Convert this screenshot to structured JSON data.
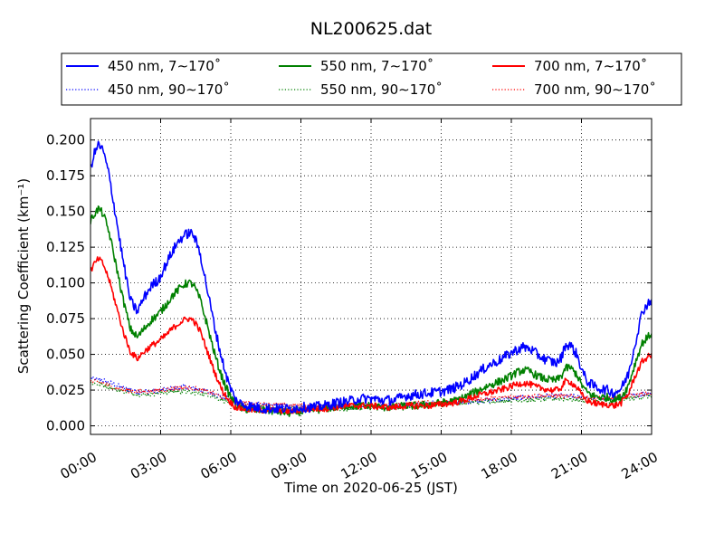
{
  "chart_data": {
    "type": "line",
    "title": "NL200625.dat",
    "xlabel": "Time on 2020-06-25 (JST)",
    "ylabel": "Scattering Coefficient (km⁻¹)",
    "x_unit": "hours",
    "xlim": [
      0,
      24
    ],
    "ylim": [
      -0.006,
      0.215
    ],
    "x_ticks": [
      0,
      3,
      6,
      9,
      12,
      15,
      18,
      21,
      24
    ],
    "x_tick_labels": [
      "00:00",
      "03:00",
      "06:00",
      "09:00",
      "12:00",
      "15:00",
      "18:00",
      "21:00",
      "24:00"
    ],
    "y_ticks": [
      0.0,
      0.025,
      0.05,
      0.075,
      0.1,
      0.125,
      0.15,
      0.175,
      0.2
    ],
    "y_tick_labels": [
      "0.000",
      "0.025",
      "0.050",
      "0.075",
      "0.100",
      "0.125",
      "0.150",
      "0.175",
      "0.200"
    ],
    "grid": true,
    "legend": {
      "placement": "top",
      "columns": 3
    },
    "series": [
      {
        "name": "450 nm, 7∼170˚",
        "color": "#0000ff",
        "style": "solid",
        "noise": 0.0035,
        "x": [
          0,
          0.15,
          0.35,
          0.55,
          0.8,
          1.1,
          1.4,
          1.7,
          2.0,
          2.3,
          2.6,
          2.9,
          3.2,
          3.5,
          3.8,
          4.0,
          4.2,
          4.4,
          4.7,
          5.0,
          5.3,
          5.6,
          5.9,
          6.2,
          6.5,
          7.0,
          7.5,
          8.0,
          8.5,
          9.0,
          9.5,
          10.0,
          10.5,
          11.0,
          11.5,
          12.0,
          12.5,
          13.0,
          13.5,
          14.0,
          14.5,
          15.0,
          15.5,
          16.0,
          16.5,
          17.0,
          17.5,
          17.9,
          18.2,
          18.5,
          18.8,
          19.1,
          19.4,
          19.7,
          19.95,
          20.15,
          20.3,
          20.5,
          20.8,
          21.0,
          21.2,
          21.5,
          21.8,
          22.1,
          22.4,
          22.7,
          23.0,
          23.3,
          23.6,
          23.9,
          24.0
        ],
        "y": [
          0.18,
          0.19,
          0.197,
          0.192,
          0.175,
          0.145,
          0.115,
          0.088,
          0.08,
          0.09,
          0.098,
          0.102,
          0.112,
          0.122,
          0.13,
          0.133,
          0.135,
          0.134,
          0.12,
          0.095,
          0.07,
          0.048,
          0.03,
          0.018,
          0.015,
          0.013,
          0.012,
          0.012,
          0.012,
          0.013,
          0.013,
          0.014,
          0.016,
          0.017,
          0.019,
          0.019,
          0.018,
          0.018,
          0.021,
          0.022,
          0.023,
          0.024,
          0.026,
          0.03,
          0.036,
          0.042,
          0.046,
          0.05,
          0.053,
          0.055,
          0.054,
          0.05,
          0.047,
          0.045,
          0.044,
          0.048,
          0.056,
          0.057,
          0.05,
          0.04,
          0.032,
          0.028,
          0.026,
          0.025,
          0.023,
          0.026,
          0.036,
          0.058,
          0.08,
          0.087,
          0.088
        ]
      },
      {
        "name": "550 nm, 7∼170˚",
        "color": "#008000",
        "style": "solid",
        "noise": 0.0028,
        "x": [
          0,
          0.15,
          0.35,
          0.55,
          0.8,
          1.1,
          1.4,
          1.7,
          2.0,
          2.3,
          2.6,
          2.9,
          3.2,
          3.5,
          3.8,
          4.0,
          4.2,
          4.4,
          4.7,
          5.0,
          5.3,
          5.6,
          5.9,
          6.2,
          6.5,
          7.0,
          7.5,
          8.0,
          8.5,
          9.0,
          9.5,
          10.0,
          10.5,
          11.0,
          11.5,
          12.0,
          12.5,
          13.0,
          13.5,
          14.0,
          14.5,
          15.0,
          15.5,
          16.0,
          16.5,
          17.0,
          17.5,
          17.9,
          18.2,
          18.5,
          18.8,
          19.1,
          19.4,
          19.7,
          19.95,
          20.15,
          20.3,
          20.5,
          20.8,
          21.0,
          21.2,
          21.5,
          21.8,
          22.1,
          22.4,
          22.7,
          23.0,
          23.3,
          23.6,
          23.9,
          24.0
        ],
        "y": [
          0.143,
          0.148,
          0.152,
          0.148,
          0.135,
          0.112,
          0.088,
          0.068,
          0.062,
          0.068,
          0.074,
          0.078,
          0.084,
          0.091,
          0.096,
          0.099,
          0.1,
          0.099,
          0.088,
          0.07,
          0.051,
          0.035,
          0.023,
          0.015,
          0.012,
          0.011,
          0.011,
          0.01,
          0.009,
          0.01,
          0.011,
          0.012,
          0.013,
          0.014,
          0.014,
          0.014,
          0.013,
          0.013,
          0.014,
          0.014,
          0.015,
          0.016,
          0.017,
          0.02,
          0.024,
          0.028,
          0.031,
          0.034,
          0.037,
          0.039,
          0.038,
          0.035,
          0.033,
          0.032,
          0.032,
          0.035,
          0.04,
          0.041,
          0.036,
          0.029,
          0.024,
          0.021,
          0.02,
          0.02,
          0.018,
          0.02,
          0.028,
          0.044,
          0.058,
          0.063,
          0.065
        ]
      },
      {
        "name": "700 nm, 7∼170˚",
        "color": "#ff0000",
        "style": "solid",
        "noise": 0.0022,
        "x": [
          0,
          0.15,
          0.35,
          0.55,
          0.8,
          1.1,
          1.4,
          1.7,
          2.0,
          2.3,
          2.6,
          2.9,
          3.2,
          3.5,
          3.8,
          4.0,
          4.2,
          4.4,
          4.7,
          5.0,
          5.3,
          5.6,
          5.9,
          6.2,
          6.5,
          7.0,
          7.5,
          8.0,
          8.5,
          9.0,
          9.5,
          10.0,
          10.5,
          11.0,
          11.5,
          12.0,
          12.5,
          13.0,
          13.5,
          14.0,
          14.5,
          15.0,
          15.5,
          16.0,
          16.5,
          17.0,
          17.5,
          17.9,
          18.2,
          18.5,
          18.8,
          19.1,
          19.4,
          19.7,
          19.95,
          20.15,
          20.3,
          20.5,
          20.8,
          21.0,
          21.2,
          21.5,
          21.8,
          22.1,
          22.4,
          22.7,
          23.0,
          23.3,
          23.6,
          23.9,
          24.0
        ],
        "y": [
          0.108,
          0.113,
          0.117,
          0.113,
          0.102,
          0.084,
          0.066,
          0.052,
          0.047,
          0.052,
          0.056,
          0.059,
          0.063,
          0.068,
          0.072,
          0.074,
          0.075,
          0.074,
          0.066,
          0.052,
          0.038,
          0.026,
          0.018,
          0.013,
          0.012,
          0.011,
          0.011,
          0.011,
          0.01,
          0.011,
          0.012,
          0.012,
          0.013,
          0.014,
          0.014,
          0.014,
          0.013,
          0.013,
          0.014,
          0.014,
          0.014,
          0.015,
          0.016,
          0.018,
          0.021,
          0.023,
          0.025,
          0.027,
          0.029,
          0.03,
          0.029,
          0.027,
          0.026,
          0.025,
          0.025,
          0.027,
          0.031,
          0.031,
          0.027,
          0.022,
          0.018,
          0.016,
          0.015,
          0.015,
          0.014,
          0.016,
          0.022,
          0.035,
          0.045,
          0.049,
          0.049
        ]
      },
      {
        "name": "450 nm, 90∼170˚",
        "color": "#0000ff",
        "style": "dotted",
        "noise": 0.0018,
        "x": [
          0,
          0.5,
          1.0,
          1.5,
          2.0,
          2.5,
          3.0,
          3.5,
          4.0,
          4.5,
          5.0,
          5.5,
          6.0,
          6.5,
          7.0,
          8.0,
          9.0,
          10.0,
          11.0,
          12.0,
          13.0,
          14.0,
          15.0,
          16.0,
          17.0,
          18.0,
          19.0,
          20.0,
          21.0,
          22.0,
          23.0,
          24.0
        ],
        "y": [
          0.033,
          0.032,
          0.029,
          0.026,
          0.024,
          0.024,
          0.025,
          0.026,
          0.027,
          0.026,
          0.024,
          0.021,
          0.018,
          0.016,
          0.015,
          0.014,
          0.013,
          0.013,
          0.013,
          0.014,
          0.014,
          0.015,
          0.016,
          0.017,
          0.018,
          0.019,
          0.02,
          0.021,
          0.02,
          0.019,
          0.021,
          0.023
        ]
      },
      {
        "name": "550 nm, 90∼170˚",
        "color": "#008000",
        "style": "dotted",
        "noise": 0.0016,
        "x": [
          0,
          0.5,
          1.0,
          1.5,
          2.0,
          2.5,
          3.0,
          3.5,
          4.0,
          4.5,
          5.0,
          5.5,
          6.0,
          6.5,
          7.0,
          8.0,
          9.0,
          10.0,
          11.0,
          12.0,
          13.0,
          14.0,
          15.0,
          16.0,
          17.0,
          18.0,
          19.0,
          20.0,
          21.0,
          22.0,
          23.0,
          24.0
        ],
        "y": [
          0.03,
          0.029,
          0.026,
          0.024,
          0.022,
          0.022,
          0.023,
          0.024,
          0.024,
          0.023,
          0.022,
          0.019,
          0.016,
          0.014,
          0.013,
          0.012,
          0.012,
          0.012,
          0.012,
          0.013,
          0.013,
          0.014,
          0.015,
          0.016,
          0.017,
          0.018,
          0.018,
          0.019,
          0.018,
          0.017,
          0.019,
          0.021
        ]
      },
      {
        "name": "700 nm, 90∼170˚",
        "color": "#ff0000",
        "style": "dotted",
        "noise": 0.0016,
        "x": [
          0,
          0.5,
          1.0,
          1.5,
          2.0,
          2.5,
          3.0,
          3.5,
          4.0,
          4.5,
          5.0,
          5.5,
          6.0,
          6.5,
          7.0,
          8.0,
          9.0,
          10.0,
          11.0,
          12.0,
          13.0,
          14.0,
          15.0,
          16.0,
          17.0,
          18.0,
          19.0,
          20.0,
          21.0,
          22.0,
          23.0,
          24.0
        ],
        "y": [
          0.031,
          0.03,
          0.027,
          0.025,
          0.024,
          0.024,
          0.025,
          0.026,
          0.027,
          0.026,
          0.024,
          0.021,
          0.018,
          0.016,
          0.015,
          0.015,
          0.014,
          0.014,
          0.014,
          0.015,
          0.015,
          0.016,
          0.017,
          0.018,
          0.019,
          0.02,
          0.021,
          0.021,
          0.02,
          0.019,
          0.021,
          0.023
        ]
      }
    ]
  }
}
